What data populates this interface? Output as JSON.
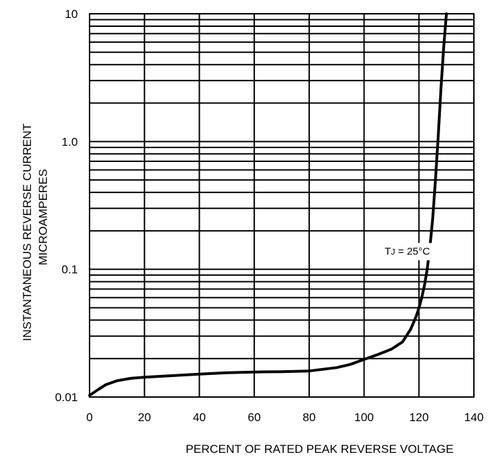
{
  "chart_data": {
    "type": "line",
    "xlabel": "PERCENT OF RATED PEAK REVERSE VOLTAGE",
    "ylabel_line1": "INSTANTANEOUS REVERSE CURRENT",
    "ylabel_line2": "MICROAMPERES",
    "xlim": [
      0,
      140
    ],
    "ylim": [
      0.01,
      10
    ],
    "y_scale": "log",
    "grid": true,
    "x_ticks": [
      0,
      20,
      40,
      60,
      80,
      100,
      120,
      140
    ],
    "x_tick_labels": [
      "0",
      "20",
      "40",
      "60",
      "80",
      "100",
      "120",
      "140"
    ],
    "y_tick_values": [
      0.01,
      0.1,
      1,
      10
    ],
    "y_tick_labels": [
      "0.01",
      "0.1",
      "1.0",
      "10"
    ],
    "annotation": {
      "prefix": "T",
      "sub": "J",
      "suffix": " = 25°C",
      "x": 124,
      "y": 0.13
    },
    "series": [
      {
        "x": [
          0,
          3,
          6,
          10,
          15,
          20,
          30,
          40,
          50,
          60,
          70,
          80,
          90,
          95,
          100,
          105,
          110,
          114,
          117,
          119,
          120,
          121,
          122,
          123,
          124,
          125,
          126,
          127,
          128,
          129,
          130
        ],
        "y": [
          0.0103,
          0.0114,
          0.0125,
          0.0134,
          0.014,
          0.0143,
          0.0147,
          0.0151,
          0.0155,
          0.0157,
          0.0158,
          0.016,
          0.017,
          0.018,
          0.0197,
          0.0215,
          0.0237,
          0.027,
          0.034,
          0.043,
          0.05,
          0.06,
          0.075,
          0.1,
          0.15,
          0.25,
          0.5,
          1.1,
          2.6,
          5.5,
          10.0
        ]
      }
    ]
  }
}
